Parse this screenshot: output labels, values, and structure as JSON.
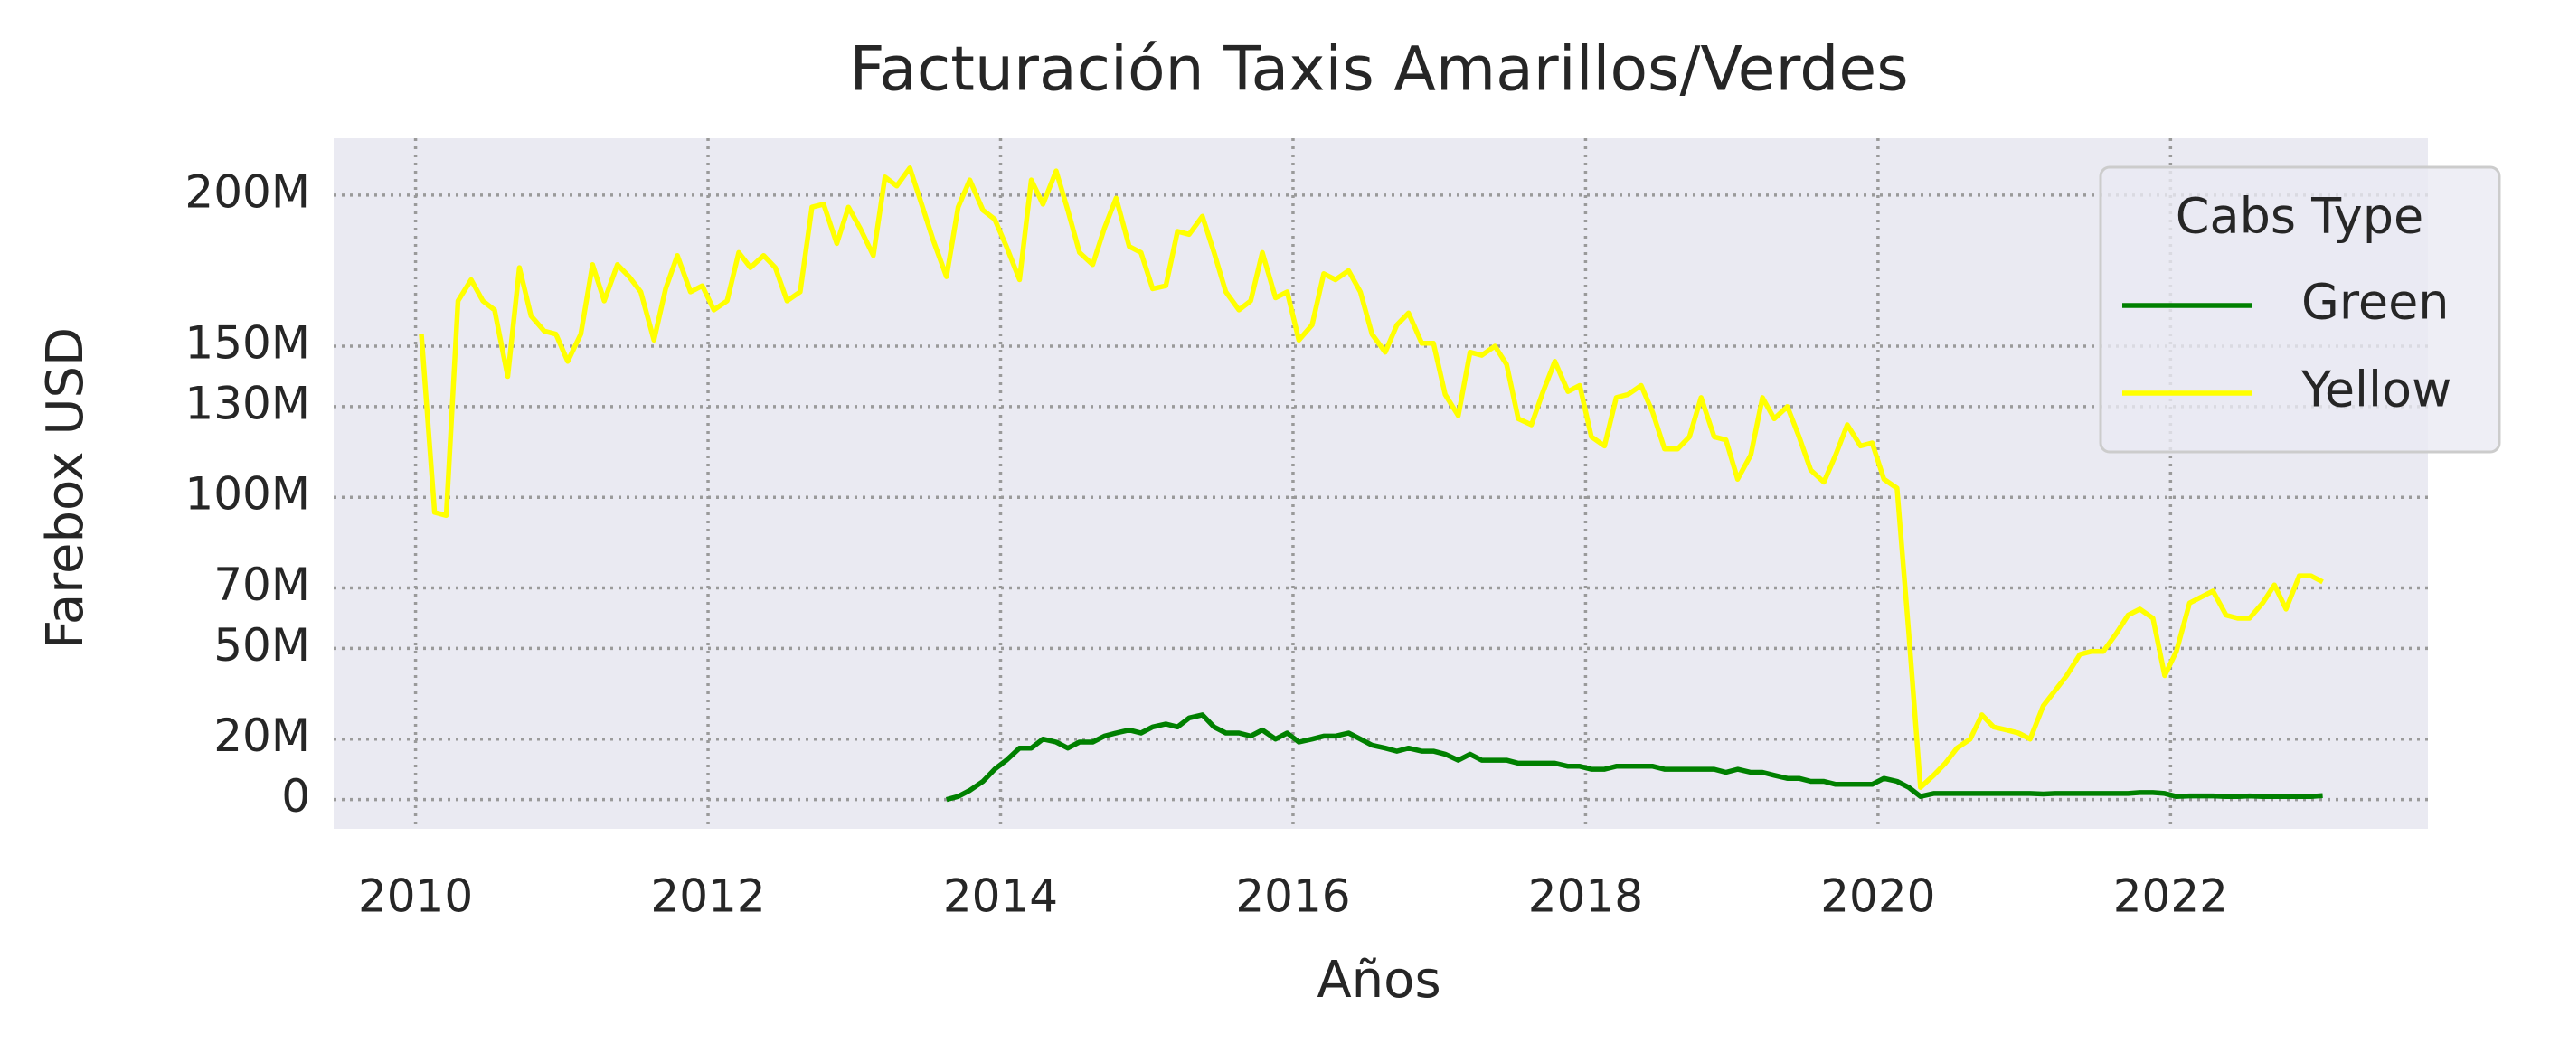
{
  "chart_data": {
    "type": "line",
    "title": "Facturación Taxis Amarillos/Verdes",
    "xlabel": "Años",
    "ylabel": "Farebox USD",
    "xlim": [
      2009.44,
      2023.76
    ],
    "xticks": [
      2010,
      2012,
      2014,
      2016,
      2018,
      2020,
      2022
    ],
    "ylim": [
      -9700000.0,
      218800000.0
    ],
    "yticks": [
      0,
      {
        "value": 20000000.0,
        "label": "20M"
      },
      {
        "value": 50000000.0,
        "label": "50M"
      },
      {
        "value": 70000000.0,
        "label": "70M"
      },
      {
        "value": 100000000.0,
        "label": "100M"
      },
      {
        "value": 130000000.0,
        "label": "130M"
      },
      {
        "value": 150000000.0,
        "label": "150M"
      },
      {
        "value": 200000000.0,
        "label": "200M"
      }
    ],
    "grid": true,
    "legend": {
      "title": "Cabs Type",
      "loc": "upper right"
    },
    "series": [
      {
        "name": "Green",
        "color": "#008000",
        "x": [
          2013.63,
          2013.71,
          2013.79,
          2013.88,
          2013.96,
          2014.04,
          2014.13,
          2014.21,
          2014.29,
          2014.38,
          2014.46,
          2014.54,
          2014.63,
          2014.71,
          2014.79,
          2014.88,
          2014.96,
          2015.04,
          2015.13,
          2015.21,
          2015.29,
          2015.38,
          2015.46,
          2015.54,
          2015.63,
          2015.71,
          2015.79,
          2015.88,
          2015.96,
          2016.04,
          2016.13,
          2016.21,
          2016.29,
          2016.38,
          2016.46,
          2016.54,
          2016.63,
          2016.71,
          2016.79,
          2016.88,
          2016.96,
          2017.04,
          2017.13,
          2017.21,
          2017.29,
          2017.38,
          2017.46,
          2017.54,
          2017.63,
          2017.71,
          2017.79,
          2017.88,
          2017.96,
          2018.04,
          2018.13,
          2018.21,
          2018.29,
          2018.38,
          2018.46,
          2018.54,
          2018.63,
          2018.71,
          2018.79,
          2018.88,
          2018.96,
          2019.04,
          2019.13,
          2019.21,
          2019.29,
          2019.38,
          2019.46,
          2019.54,
          2019.63,
          2019.71,
          2019.79,
          2019.88,
          2019.96,
          2020.04,
          2020.13,
          2020.21,
          2020.29,
          2020.38,
          2020.46,
          2020.54,
          2020.63,
          2020.71,
          2020.79,
          2020.88,
          2020.96,
          2021.04,
          2021.13,
          2021.21,
          2021.29,
          2021.38,
          2021.46,
          2021.54,
          2021.63,
          2021.71,
          2021.79,
          2021.88,
          2021.96,
          2022.04,
          2022.13,
          2022.21,
          2022.29,
          2022.38,
          2022.46,
          2022.54,
          2022.63,
          2022.71,
          2022.79,
          2022.88,
          2022.96,
          2023.04
        ],
        "values": [
          0,
          1000000.0,
          3000000.0,
          6000000.0,
          10000000.0,
          13000000.0,
          17000000.0,
          17000000.0,
          20000000.0,
          19000000.0,
          17000000.0,
          19000000.0,
          19000000.0,
          21000000.0,
          22000000.0,
          23000000.0,
          22000000.0,
          24000000.0,
          25000000.0,
          24000000.0,
          27000000.0,
          28000000.0,
          24000000.0,
          22000000.0,
          22000000.0,
          21000000.0,
          23000000.0,
          20000000.0,
          22000000.0,
          19000000.0,
          20000000.0,
          21000000.0,
          21000000.0,
          22000000.0,
          20000000.0,
          18000000.0,
          17000000.0,
          16000000.0,
          17000000.0,
          16000000.0,
          16000000.0,
          15000000.0,
          13000000.0,
          15000000.0,
          13000000.0,
          13000000.0,
          13000000.0,
          12000000.0,
          12000000.0,
          12000000.0,
          12000000.0,
          11000000.0,
          11000000.0,
          10000000.0,
          10000000.0,
          11000000.0,
          11000000.0,
          11000000.0,
          11000000.0,
          10000000.0,
          10000000.0,
          10000000.0,
          10000000.0,
          10000000.0,
          9000000.0,
          10000000.0,
          9000000.0,
          9000000.0,
          8000000.0,
          7000000.0,
          7000000.0,
          6000000.0,
          6000000.0,
          5000000.0,
          5000000.0,
          5000000.0,
          5000000.0,
          7000000.0,
          6000000.0,
          4000000.0,
          1000000.0,
          2000000.0,
          2000000.0,
          2000000.0,
          2000000.0,
          2000000.0,
          2000000.0,
          2000000.0,
          2000000.0,
          2000000.0,
          1800000.0,
          2000000.0,
          2000000.0,
          2000000.0,
          2000000.0,
          2000000.0,
          2000000.0,
          2000000.0,
          2300000.0,
          2300000.0,
          2000000.0,
          1000000.0,
          1200000.0,
          1200000.0,
          1200000.0,
          1000000.0,
          1000000.0,
          1200000.0,
          1000000.0,
          1000000.0,
          1000000.0,
          1000000.0,
          1000000.0,
          1300000.0
        ]
      },
      {
        "name": "Yellow",
        "color": "#ffff00",
        "x": [
          2010.04,
          2010.13,
          2010.21,
          2010.29,
          2010.38,
          2010.46,
          2010.54,
          2010.63,
          2010.71,
          2010.79,
          2010.88,
          2010.96,
          2011.04,
          2011.13,
          2011.21,
          2011.29,
          2011.38,
          2011.46,
          2011.54,
          2011.63,
          2011.71,
          2011.79,
          2011.88,
          2011.96,
          2012.04,
          2012.13,
          2012.21,
          2012.29,
          2012.38,
          2012.46,
          2012.54,
          2012.63,
          2012.71,
          2012.79,
          2012.88,
          2012.96,
          2013.04,
          2013.13,
          2013.21,
          2013.29,
          2013.38,
          2013.46,
          2013.54,
          2013.63,
          2013.71,
          2013.79,
          2013.88,
          2013.96,
          2014.04,
          2014.13,
          2014.21,
          2014.29,
          2014.38,
          2014.46,
          2014.54,
          2014.63,
          2014.71,
          2014.79,
          2014.88,
          2014.96,
          2015.04,
          2015.13,
          2015.21,
          2015.29,
          2015.38,
          2015.46,
          2015.54,
          2015.63,
          2015.71,
          2015.79,
          2015.88,
          2015.96,
          2016.04,
          2016.13,
          2016.21,
          2016.29,
          2016.38,
          2016.46,
          2016.54,
          2016.63,
          2016.71,
          2016.79,
          2016.88,
          2016.96,
          2017.04,
          2017.13,
          2017.21,
          2017.29,
          2017.38,
          2017.46,
          2017.54,
          2017.63,
          2017.71,
          2017.79,
          2017.88,
          2017.96,
          2018.04,
          2018.13,
          2018.21,
          2018.29,
          2018.38,
          2018.46,
          2018.54,
          2018.63,
          2018.71,
          2018.79,
          2018.88,
          2018.96,
          2019.04,
          2019.13,
          2019.21,
          2019.29,
          2019.38,
          2019.46,
          2019.54,
          2019.63,
          2019.71,
          2019.79,
          2019.88,
          2019.96,
          2020.04,
          2020.13,
          2020.21,
          2020.29,
          2020.38,
          2020.46,
          2020.54,
          2020.63,
          2020.71,
          2020.79,
          2020.88,
          2020.96,
          2021.04,
          2021.13,
          2021.21,
          2021.29,
          2021.38,
          2021.46,
          2021.54,
          2021.63,
          2021.71,
          2021.79,
          2021.88,
          2021.96,
          2022.04,
          2022.13,
          2022.21,
          2022.29,
          2022.38,
          2022.46,
          2022.54,
          2022.63,
          2022.71,
          2022.79,
          2022.88,
          2022.96,
          2023.04
        ],
        "values": [
          154000000.0,
          95000000.0,
          94000000.0,
          165000000.0,
          172000000.0,
          165000000.0,
          162000000.0,
          140000000.0,
          176000000.0,
          160000000.0,
          155000000.0,
          154000000.0,
          145000000.0,
          154000000.0,
          177000000.0,
          165000000.0,
          177000000.0,
          173000000.0,
          168000000.0,
          152000000.0,
          169000000.0,
          180000000.0,
          168000000.0,
          170000000.0,
          162000000.0,
          165000000.0,
          181000000.0,
          176000000.0,
          180000000.0,
          176000000.0,
          165000000.0,
          168000000.0,
          196000000.0,
          197000000.0,
          184000000.0,
          196000000.0,
          189000000.0,
          180000000.0,
          206000000.0,
          203000000.0,
          209000000.0,
          197000000.0,
          185000000.0,
          173000000.0,
          196000000.0,
          205000000.0,
          195000000.0,
          192000000.0,
          183000000.0,
          172000000.0,
          205000000.0,
          197000000.0,
          208000000.0,
          195000000.0,
          181000000.0,
          177000000.0,
          189000000.0,
          199000000.0,
          183000000.0,
          181000000.0,
          169000000.0,
          170000000.0,
          188000000.0,
          187000000.0,
          193000000.0,
          181000000.0,
          168000000.0,
          162000000.0,
          165000000.0,
          181000000.0,
          166000000.0,
          168000000.0,
          152000000.0,
          157000000.0,
          174000000.0,
          172000000.0,
          175000000.0,
          168000000.0,
          154000000.0,
          148000000.0,
          157000000.0,
          161000000.0,
          151000000.0,
          151000000.0,
          134000000.0,
          127000000.0,
          148000000.0,
          147000000.0,
          150000000.0,
          144000000.0,
          126000000.0,
          124000000.0,
          135000000.0,
          145000000.0,
          135000000.0,
          137000000.0,
          120000000.0,
          117000000.0,
          133000000.0,
          134000000.0,
          137000000.0,
          128000000.0,
          116000000.0,
          116000000.0,
          120000000.0,
          133000000.0,
          120000000.0,
          119000000.0,
          106000000.0,
          114000000.0,
          133000000.0,
          126000000.0,
          130000000.0,
          120000000.0,
          109000000.0,
          105000000.0,
          114000000.0,
          124000000.0,
          117000000.0,
          118000000.0,
          106000000.0,
          103000000.0,
          55000000.0,
          4000000.0,
          8000000.0,
          12000000.0,
          17000000.0,
          20000000.0,
          28000000.0,
          24000000.0,
          23000000.0,
          22000000.0,
          20000000.0,
          31000000.0,
          36000000.0,
          41000000.0,
          48000000.0,
          49000000.0,
          49000000.0,
          55000000.0,
          61000000.0,
          63000000.0,
          60000000.0,
          41000000.0,
          49000000.0,
          65000000.0,
          67000000.0,
          69000000.0,
          61000000.0,
          60000000.0,
          60000000.0,
          65000000.0,
          71000000.0,
          63000000.0,
          74000000.0,
          74000000.0,
          72000000.0
        ]
      }
    ]
  }
}
